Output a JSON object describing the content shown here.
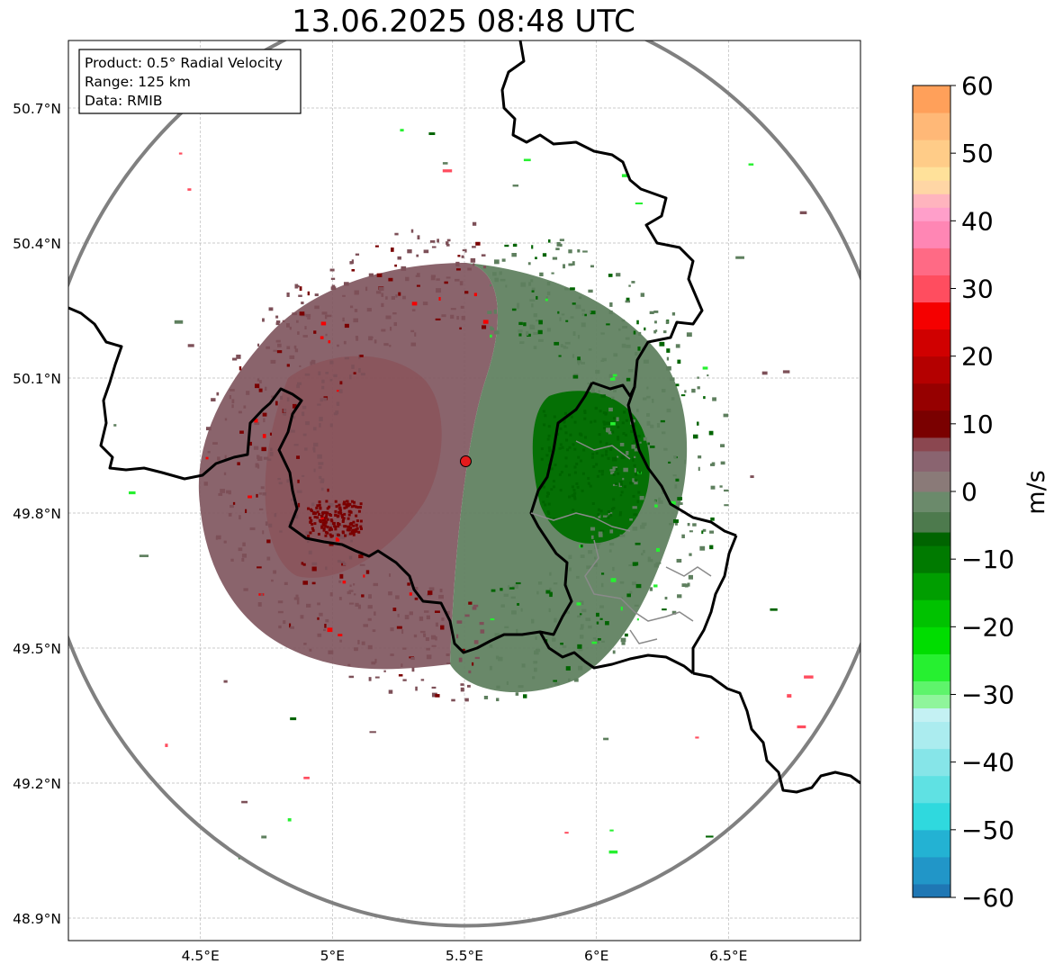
{
  "title": "13.06.2025 08:48 UTC",
  "info_box": {
    "product": "Product: 0.5° Radial Velocity",
    "range": "Range: 125 km",
    "source": "Data: RMIB"
  },
  "map": {
    "lon_range": [
      4.0,
      7.0
    ],
    "lat_range": [
      48.85,
      50.85
    ],
    "lon_ticks": [
      {
        "value": 4.5,
        "label": "4.5°E"
      },
      {
        "value": 5.0,
        "label": "5°E"
      },
      {
        "value": 5.5,
        "label": "5.5°E"
      },
      {
        "value": 6.0,
        "label": "6°E"
      },
      {
        "value": 6.5,
        "label": "6.5°E"
      }
    ],
    "lat_ticks": [
      {
        "value": 50.7,
        "label": "50.7°N"
      },
      {
        "value": 50.4,
        "label": "50.4°N"
      },
      {
        "value": 50.1,
        "label": "50.1°N"
      },
      {
        "value": 49.8,
        "label": "49.8°N"
      },
      {
        "value": 49.5,
        "label": "49.5°N"
      },
      {
        "value": 49.2,
        "label": "49.2°N"
      },
      {
        "value": 48.9,
        "label": "48.9°N"
      }
    ],
    "radar_site": {
      "lon": 5.505,
      "lat": 49.915
    },
    "range_km": 125
  },
  "colorbar": {
    "label": "m/s",
    "min": -60,
    "max": 60,
    "ticks": [
      {
        "value": 60,
        "label": "60"
      },
      {
        "value": 50,
        "label": "50"
      },
      {
        "value": 40,
        "label": "40"
      },
      {
        "value": 30,
        "label": "30"
      },
      {
        "value": 20,
        "label": "20"
      },
      {
        "value": 10,
        "label": "10"
      },
      {
        "value": 0,
        "label": "0"
      },
      {
        "value": -10,
        "label": "−10"
      },
      {
        "value": -20,
        "label": "−20"
      },
      {
        "value": -30,
        "label": "−30"
      },
      {
        "value": -40,
        "label": "−40"
      },
      {
        "value": -50,
        "label": "−50"
      },
      {
        "value": -60,
        "label": "−60"
      }
    ],
    "bands": [
      {
        "from": -60,
        "to": -58,
        "color": "#1f77b4"
      },
      {
        "from": -58,
        "to": -54,
        "color": "#2196c8"
      },
      {
        "from": -54,
        "to": -50,
        "color": "#23b2d3"
      },
      {
        "from": -50,
        "to": -46,
        "color": "#2fd9de"
      },
      {
        "from": -46,
        "to": -42,
        "color": "#5fe1e3"
      },
      {
        "from": -42,
        "to": -38,
        "color": "#86e5e8"
      },
      {
        "from": -38,
        "to": -34,
        "color": "#abecef"
      },
      {
        "from": -34,
        "to": -32,
        "color": "#c4f1f3"
      },
      {
        "from": -32,
        "to": -30,
        "color": "#8ff59b"
      },
      {
        "from": -30,
        "to": -28,
        "color": "#5ef46b"
      },
      {
        "from": -28,
        "to": -24,
        "color": "#26f030"
      },
      {
        "from": -24,
        "to": -20,
        "color": "#00dd00"
      },
      {
        "from": -20,
        "to": -16,
        "color": "#00c200"
      },
      {
        "from": -16,
        "to": -12,
        "color": "#009e00"
      },
      {
        "from": -12,
        "to": -8,
        "color": "#007a00"
      },
      {
        "from": -8,
        "to": -6,
        "color": "#006400"
      },
      {
        "from": -6,
        "to": -3,
        "color": "#4d7a4d"
      },
      {
        "from": -3,
        "to": 0,
        "color": "#6b8a6b"
      },
      {
        "from": 0,
        "to": 3,
        "color": "#8a7a78"
      },
      {
        "from": 3,
        "to": 6,
        "color": "#8a6470"
      },
      {
        "from": 6,
        "to": 8,
        "color": "#8b4750"
      },
      {
        "from": 8,
        "to": 12,
        "color": "#7a0000"
      },
      {
        "from": 12,
        "to": 16,
        "color": "#960000"
      },
      {
        "from": 16,
        "to": 20,
        "color": "#b40000"
      },
      {
        "from": 20,
        "to": 24,
        "color": "#d00000"
      },
      {
        "from": 24,
        "to": 28,
        "color": "#f50000"
      },
      {
        "from": 28,
        "to": 32,
        "color": "#ff4d5f"
      },
      {
        "from": 32,
        "to": 36,
        "color": "#ff6a85"
      },
      {
        "from": 36,
        "to": 40,
        "color": "#ff86b4"
      },
      {
        "from": 40,
        "to": 42,
        "color": "#ff9fca"
      },
      {
        "from": 42,
        "to": 44,
        "color": "#ffb4be"
      },
      {
        "from": 44,
        "to": 46,
        "color": "#ffd6a5"
      },
      {
        "from": 46,
        "to": 48,
        "color": "#ffe19a"
      },
      {
        "from": 48,
        "to": 52,
        "color": "#ffcc88"
      },
      {
        "from": 52,
        "to": 56,
        "color": "#ffb877"
      },
      {
        "from": 56,
        "to": 60,
        "color": "#ffa05a"
      }
    ]
  },
  "colors": {
    "inbound_dark": "#006400",
    "inbound_muted": "#5e7f5e",
    "outbound_muted": "#7d5058",
    "outbound_dark": "#7a0000",
    "range_ring": "#808080",
    "border": "#000000",
    "site_marker": "#e41a1c"
  }
}
